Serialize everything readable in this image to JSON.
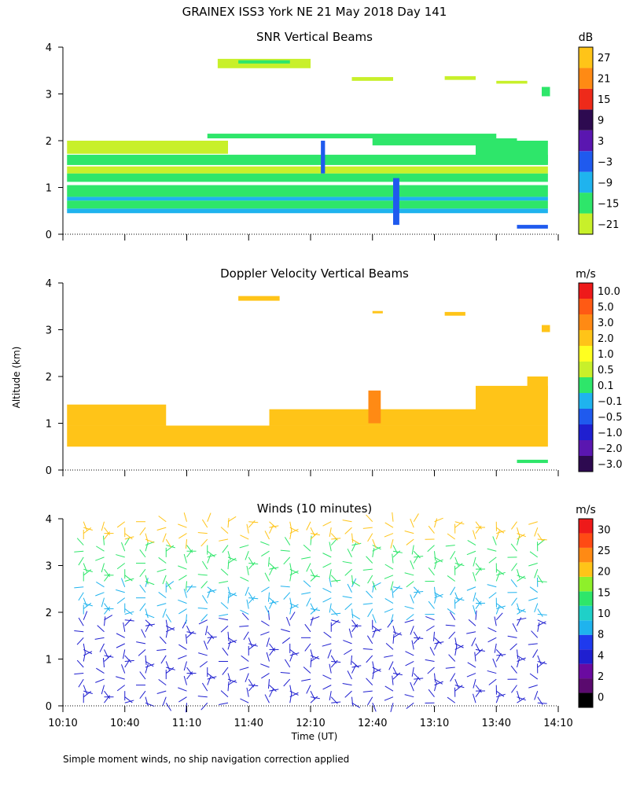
{
  "figure": {
    "title": "GRAINEX ISS3 York NE  21 May 2018 Day 141",
    "ylabel": "Altitude (km)",
    "xlabel": "Time (UT)",
    "footnote": "Simple moment winds, no ship navigation correction applied"
  },
  "chart_data": [
    {
      "type": "heatmap",
      "title": "SNR Vertical Beams",
      "ylabel": "Altitude (km)",
      "xlabel": "Time (UT)",
      "xlim": [
        "10:10",
        "14:10"
      ],
      "ylim": [
        0,
        4
      ],
      "xticks": [
        "10:10",
        "10:40",
        "11:10",
        "11:40",
        "12:10",
        "12:40",
        "13:10",
        "13:40",
        "14:10"
      ],
      "yticks": [
        0,
        1,
        2,
        3,
        4
      ],
      "show_x_tick_labels": false,
      "colorbar": {
        "unit": "dB",
        "tick_labels": [
          "27",
          "21",
          "15",
          "9",
          "3",
          "−3",
          "−9",
          "−15",
          "−21"
        ],
        "colors": [
          "#c8f02a",
          "#2ee66a",
          "#1fb3ee",
          "#1f5aee",
          "#5a16b0",
          "#2d0a50",
          "#ee2a1a",
          "#ff8a14",
          "#ffc418"
        ]
      },
      "regions": [
        {
          "t0": "10:12",
          "t1": "14:05",
          "z0": 0.45,
          "z1": 0.55,
          "color": "#1fb3ee"
        },
        {
          "t0": "10:12",
          "t1": "14:05",
          "z0": 0.55,
          "z1": 0.72,
          "color": "#2ee66a"
        },
        {
          "t0": "10:12",
          "t1": "14:05",
          "z0": 0.72,
          "z1": 0.8,
          "color": "#1fb3ee"
        },
        {
          "t0": "10:12",
          "t1": "14:05",
          "z0": 0.8,
          "z1": 1.05,
          "color": "#2ee66a"
        },
        {
          "t0": "10:12",
          "t1": "14:05",
          "z0": 1.12,
          "z1": 1.3,
          "color": "#2ee66a"
        },
        {
          "t0": "10:12",
          "t1": "14:05",
          "z0": 1.3,
          "z1": 1.45,
          "color": "#c8f02a"
        },
        {
          "t0": "10:12",
          "t1": "14:05",
          "z0": 1.48,
          "z1": 1.7,
          "color": "#2ee66a"
        },
        {
          "t0": "10:12",
          "t1": "11:30",
          "z0": 1.72,
          "z1": 2.0,
          "color": "#c8f02a"
        },
        {
          "t0": "11:20",
          "t1": "13:40",
          "z0": 2.05,
          "z1": 2.15,
          "color": "#2ee66a"
        },
        {
          "t0": "12:40",
          "t1": "13:50",
          "z0": 1.9,
          "z1": 2.05,
          "color": "#2ee66a"
        },
        {
          "t0": "13:30",
          "t1": "14:05",
          "z0": 1.5,
          "z1": 2.0,
          "color": "#2ee66a"
        },
        {
          "t0": "11:25",
          "t1": "12:10",
          "z0": 3.55,
          "z1": 3.75,
          "color": "#c8f02a"
        },
        {
          "t0": "11:35",
          "t1": "12:00",
          "z0": 3.65,
          "z1": 3.72,
          "color": "#2ee66a"
        },
        {
          "t0": "12:30",
          "t1": "12:50",
          "z0": 3.28,
          "z1": 3.36,
          "color": "#c8f02a"
        },
        {
          "t0": "13:15",
          "t1": "13:30",
          "z0": 3.3,
          "z1": 3.38,
          "color": "#c8f02a"
        },
        {
          "t0": "13:40",
          "t1": "13:55",
          "z0": 3.22,
          "z1": 3.28,
          "color": "#c8f02a"
        },
        {
          "t0": "14:02",
          "t1": "14:06",
          "z0": 2.95,
          "z1": 3.15,
          "color": "#2ee66a"
        },
        {
          "t0": "13:50",
          "t1": "14:05",
          "z0": 0.12,
          "z1": 0.2,
          "color": "#1f5aee"
        },
        {
          "t0": "12:50",
          "t1": "12:53",
          "z0": 0.2,
          "z1": 1.2,
          "color": "#1f5aee"
        },
        {
          "t0": "12:15",
          "t1": "12:17",
          "z0": 1.3,
          "z1": 2.0,
          "color": "#1f5aee"
        }
      ]
    },
    {
      "type": "heatmap",
      "title": "Doppler Velocity Vertical Beams",
      "ylabel": "Altitude (km)",
      "xlabel": "Time (UT)",
      "xlim": [
        "10:10",
        "14:10"
      ],
      "ylim": [
        0,
        4
      ],
      "xticks": [
        "10:10",
        "10:40",
        "11:10",
        "11:40",
        "12:10",
        "12:40",
        "13:10",
        "13:40",
        "14:10"
      ],
      "yticks": [
        0,
        1,
        2,
        3,
        4
      ],
      "show_x_tick_labels": false,
      "colorbar": {
        "unit": "m/s",
        "tick_labels": [
          "10.0",
          "5.0",
          "3.0",
          "2.0",
          "1.0",
          "0.5",
          "0.1",
          "−0.1",
          "−0.5",
          "−1.0",
          "−2.0",
          "−3.0"
        ],
        "colors": [
          "#2d0a50",
          "#5a16b0",
          "#1f1fd0",
          "#1f5aee",
          "#1fb3ee",
          "#2ee66a",
          "#c8f02a",
          "#ffff20",
          "#ffc418",
          "#ff8a14",
          "#ff5a14",
          "#ee1a1a"
        ]
      },
      "regions": [
        {
          "t0": "10:12",
          "t1": "14:05",
          "z0": 0.5,
          "z1": 0.95,
          "color": "#ffc418"
        },
        {
          "t0": "10:12",
          "t1": "11:00",
          "z0": 0.95,
          "z1": 1.4,
          "color": "#ffc418"
        },
        {
          "t0": "11:50",
          "t1": "13:30",
          "z0": 0.95,
          "z1": 1.3,
          "color": "#ffc418"
        },
        {
          "t0": "13:30",
          "t1": "14:05",
          "z0": 0.95,
          "z1": 1.8,
          "color": "#ffc418"
        },
        {
          "t0": "13:55",
          "t1": "14:05",
          "z0": 1.5,
          "z1": 2.0,
          "color": "#ffc418"
        },
        {
          "t0": "13:50",
          "t1": "14:05",
          "z0": 0.15,
          "z1": 0.22,
          "color": "#2ee66a"
        },
        {
          "t0": "11:35",
          "t1": "11:55",
          "z0": 3.62,
          "z1": 3.72,
          "color": "#ffc418"
        },
        {
          "t0": "12:40",
          "t1": "12:45",
          "z0": 3.35,
          "z1": 3.4,
          "color": "#ffc418"
        },
        {
          "t0": "13:15",
          "t1": "13:25",
          "z0": 3.3,
          "z1": 3.38,
          "color": "#ffc418"
        },
        {
          "t0": "14:02",
          "t1": "14:06",
          "z0": 2.95,
          "z1": 3.1,
          "color": "#ffc418"
        },
        {
          "t0": "12:38",
          "t1": "12:44",
          "z0": 1.0,
          "z1": 1.7,
          "color": "#ff8a14"
        }
      ]
    },
    {
      "type": "scatter",
      "title": "Winds (10 minutes)",
      "ylabel": "Altitude (km)",
      "xlabel": "Time (UT)",
      "xlim": [
        "10:10",
        "14:10"
      ],
      "ylim": [
        0,
        4
      ],
      "xticks": [
        "10:10",
        "10:40",
        "11:10",
        "11:40",
        "12:10",
        "12:40",
        "13:10",
        "13:40",
        "14:10"
      ],
      "yticks": [
        0,
        1,
        2,
        3,
        4
      ],
      "show_x_tick_labels": true,
      "colorbar": {
        "unit": "m/s",
        "tick_labels": [
          "30",
          "25",
          "20",
          "15",
          "10",
          "8",
          "4",
          "2",
          "0"
        ],
        "colors": [
          "#000000",
          "#5a0a6e",
          "#6a0aa0",
          "#1f1fd0",
          "#1f3aee",
          "#1fb3ee",
          "#1fd0c8",
          "#2ee66a",
          "#8ef02a",
          "#ffc418",
          "#ff8a14",
          "#ff4a14",
          "#ee1a1a"
        ]
      },
      "barb_times": [
        "10:20",
        "10:30",
        "10:40",
        "10:50",
        "11:00",
        "11:10",
        "11:20",
        "11:30",
        "11:40",
        "11:50",
        "12:00",
        "12:10",
        "12:20",
        "12:30",
        "12:40",
        "12:50",
        "13:00",
        "13:10",
        "13:20",
        "13:30",
        "13:40",
        "13:50",
        "14:00"
      ],
      "speed_bands": [
        {
          "z0": 0.0,
          "z1": 1.9,
          "speed": 7
        },
        {
          "z0": 1.9,
          "z1": 2.6,
          "speed": 13
        },
        {
          "z0": 2.6,
          "z1": 3.5,
          "speed": 17
        },
        {
          "z0": 3.5,
          "z1": 4.0,
          "speed": 22
        }
      ]
    }
  ]
}
